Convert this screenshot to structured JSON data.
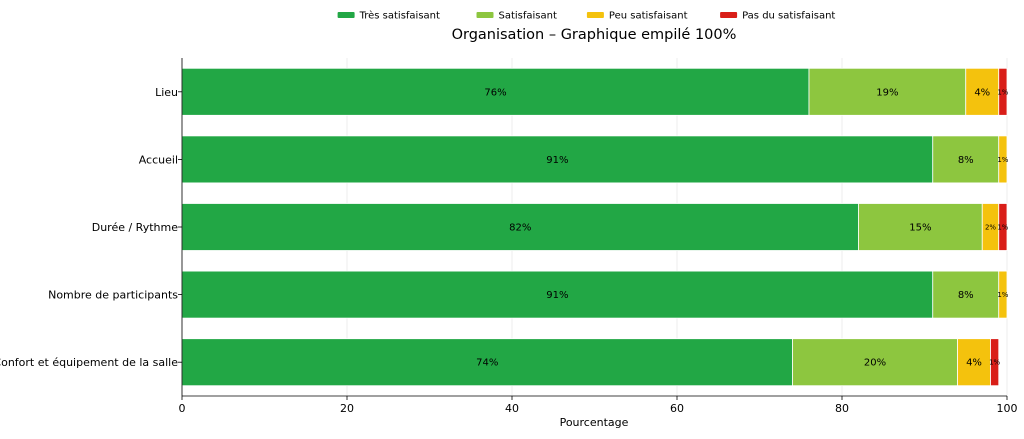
{
  "chart_data": {
    "type": "bar",
    "orientation": "horizontal",
    "stacked": "percent",
    "title": "Organisation – Graphique empilé 100%",
    "xlabel": "Pourcentage",
    "ylabel": "",
    "xlim": [
      0,
      100
    ],
    "xticks": [
      0,
      20,
      40,
      60,
      80,
      100
    ],
    "grid": true,
    "legend": "top-center",
    "categories": [
      "Lieu",
      "Accueil",
      "Durée / Rythme",
      "Nombre de participants",
      "Confort et équipement de la salle"
    ],
    "series": [
      {
        "name": "Très satisfaisant",
        "color": "#22a745",
        "values": [
          76,
          91,
          82,
          91,
          74
        ]
      },
      {
        "name": "Satisfaisant",
        "color": "#8dc63f",
        "values": [
          19,
          8,
          15,
          8,
          20
        ]
      },
      {
        "name": "Peu satisfaisant",
        "color": "#f4c20d",
        "values": [
          4,
          1,
          2,
          1,
          4
        ]
      },
      {
        "name": "Pas du satisfaisant",
        "color": "#d91e18",
        "values": [
          1,
          0,
          1,
          0,
          1
        ]
      }
    ]
  }
}
